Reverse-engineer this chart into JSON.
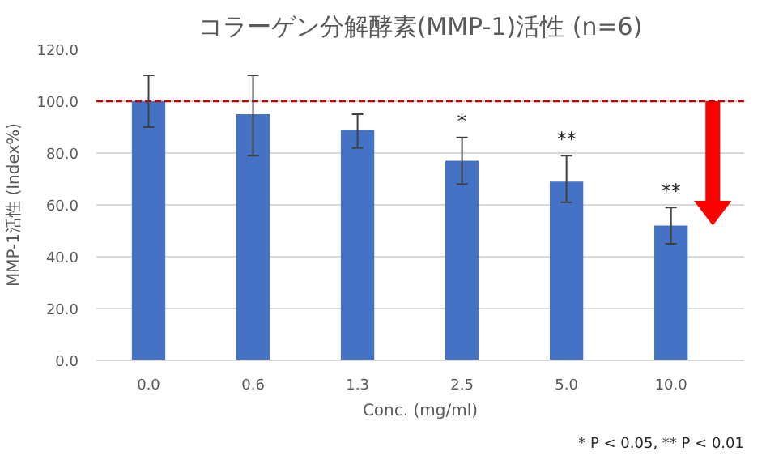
{
  "chart_data": {
    "type": "bar",
    "title": "コラーゲン分解酵素(MMP-1)活性 (n=6)",
    "xlabel": "Conc. (mg/ml)",
    "ylabel": "MMP-1活性 (Index%)",
    "categories": [
      "0.0",
      "0.6",
      "1.3",
      "2.5",
      "5.0",
      "10.0"
    ],
    "values": [
      100,
      95,
      89,
      77,
      69,
      52
    ],
    "color": "#4472c4",
    "errors": [
      [
        90,
        110
      ],
      [
        79,
        110
      ],
      [
        82,
        95
      ],
      [
        68,
        86
      ],
      [
        61,
        79
      ],
      [
        45,
        59
      ]
    ],
    "ylim": [
      0,
      120
    ],
    "yticks": [
      {
        "value": 0,
        "label": "0.0"
      },
      {
        "value": 20,
        "label": "20.0"
      },
      {
        "value": 40,
        "label": "40.0"
      },
      {
        "value": 60,
        "label": "60.0"
      },
      {
        "value": 80,
        "label": "80.0"
      },
      {
        "value": 100,
        "label": "100.0"
      },
      {
        "value": 120,
        "label": "120.0"
      }
    ],
    "grid": "y",
    "ref_lines": [
      {
        "axis": "y",
        "value": 100,
        "color": "#c00000",
        "line_style": "dashed"
      }
    ],
    "annotations": [
      {
        "text": "*",
        "x": "2.5",
        "y": 86
      },
      {
        "text": "**",
        "x": "5.0",
        "y": 79
      },
      {
        "text": "**",
        "x": "10.0",
        "y": 59
      },
      "* P < 0.05, ** P < 0.01"
    ]
  }
}
